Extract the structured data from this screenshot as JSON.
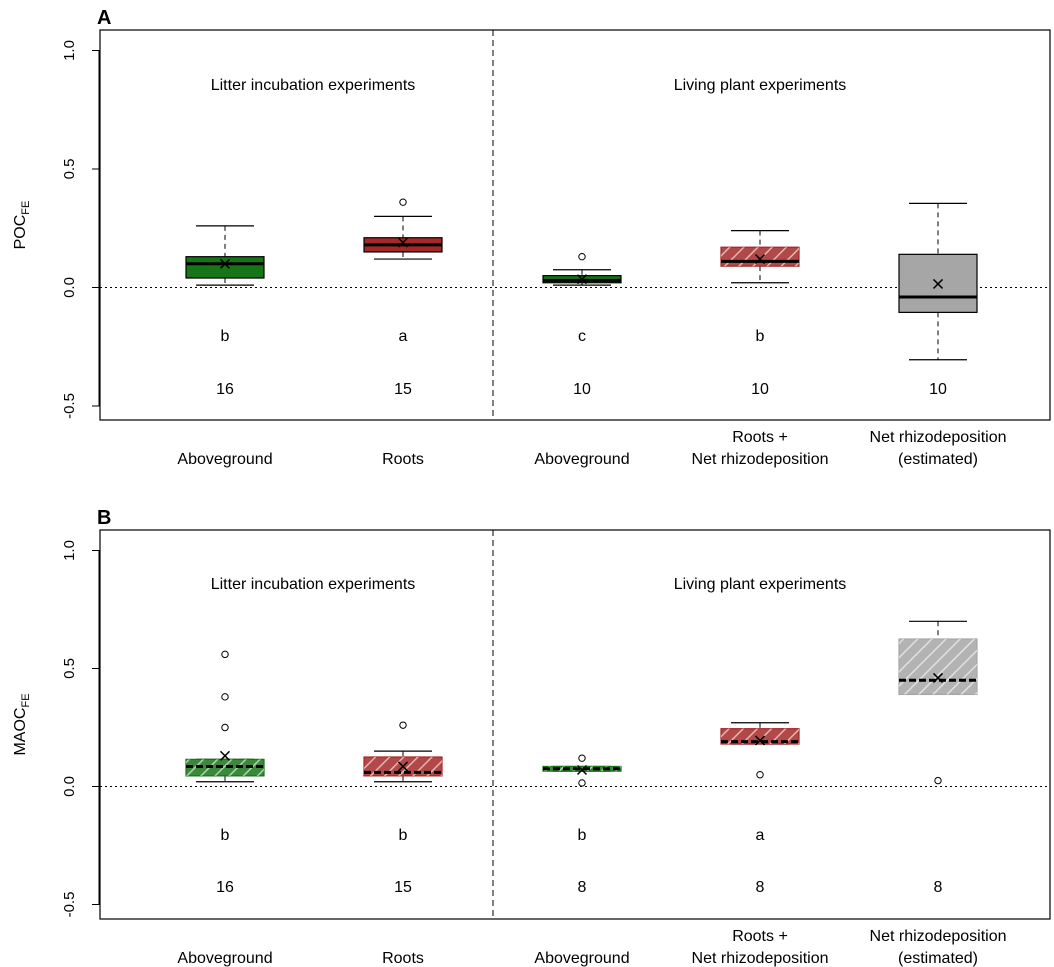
{
  "chart_data": [
    {
      "type": "boxplot",
      "panel_label": "A",
      "ylabel": "POC",
      "ylabel_subscript": "FE",
      "ylim": [
        -0.5,
        1.0
      ],
      "yticks": [
        "-0.5",
        "0.0",
        "0.5",
        "1.0"
      ],
      "reference_line_y": 0,
      "sections": [
        "Litter incubation experiments",
        "Living plant experiments"
      ],
      "categories": [
        {
          "lines": [
            "Aboveground"
          ]
        },
        {
          "lines": [
            "Roots"
          ]
        },
        {
          "lines": [
            "Aboveground"
          ]
        },
        {
          "lines": [
            "Roots +",
            "Net rhizodeposition"
          ]
        },
        {
          "lines": [
            "Net rhizodeposition",
            "(estimated)"
          ]
        }
      ],
      "boxes": [
        {
          "section": 0,
          "letter": "b",
          "n": "16",
          "whisker_low": 0.01,
          "q1": 0.04,
          "median": 0.1,
          "q3": 0.13,
          "whisker_high": 0.26,
          "mean": 0.1,
          "outliers": [],
          "fill": "#167516",
          "hatched": false,
          "median_dashed": false
        },
        {
          "section": 0,
          "letter": "a",
          "n": "15",
          "whisker_low": 0.12,
          "q1": 0.15,
          "median": 0.18,
          "q3": 0.21,
          "whisker_high": 0.3,
          "mean": 0.19,
          "outliers": [
            0.36
          ],
          "fill": "#a52828",
          "hatched": false,
          "median_dashed": false
        },
        {
          "section": 1,
          "letter": "c",
          "n": "10",
          "whisker_low": 0.01,
          "q1": 0.02,
          "median": 0.03,
          "q3": 0.05,
          "whisker_high": 0.075,
          "mean": 0.035,
          "outliers": [
            0.13
          ],
          "fill": "#167516",
          "hatched": false,
          "median_dashed": false
        },
        {
          "section": 1,
          "letter": "b",
          "n": "10",
          "whisker_low": 0.02,
          "q1": 0.09,
          "median": 0.11,
          "q3": 0.17,
          "whisker_high": 0.24,
          "mean": 0.12,
          "outliers": [],
          "fill": "#a52828",
          "hatched": true,
          "median_dashed": false
        },
        {
          "section": 1,
          "letter": "",
          "n": "10",
          "whisker_low": -0.305,
          "q1": -0.105,
          "median": -0.04,
          "q3": 0.14,
          "whisker_high": 0.355,
          "mean": 0.015,
          "outliers": [],
          "fill": "#a6a6a6",
          "hatched": false,
          "median_dashed": false
        }
      ]
    },
    {
      "type": "boxplot",
      "panel_label": "B",
      "ylabel": "MAOC",
      "ylabel_subscript": "FE",
      "ylim": [
        -0.5,
        1.0
      ],
      "yticks": [
        "-0.5",
        "0.0",
        "0.5",
        "1.0"
      ],
      "reference_line_y": 0,
      "sections": [
        "Litter incubation experiments",
        "Living plant experiments"
      ],
      "categories": [
        {
          "lines": [
            "Aboveground"
          ]
        },
        {
          "lines": [
            "Roots"
          ]
        },
        {
          "lines": [
            "Aboveground"
          ]
        },
        {
          "lines": [
            "Roots +",
            "Net rhizodeposition"
          ]
        },
        {
          "lines": [
            "Net rhizodeposition",
            "(estimated)"
          ]
        }
      ],
      "boxes": [
        {
          "section": 0,
          "letter": "b",
          "n": "16",
          "whisker_low": 0.02,
          "q1": 0.045,
          "median": 0.085,
          "q3": 0.115,
          "whisker_high": 0.115,
          "mean": 0.13,
          "outliers": [
            0.25,
            0.38,
            0.56
          ],
          "fill": "#167516",
          "hatched": true,
          "median_dashed": true
        },
        {
          "section": 0,
          "letter": "b",
          "n": "15",
          "whisker_low": 0.02,
          "q1": 0.045,
          "median": 0.06,
          "q3": 0.125,
          "whisker_high": 0.15,
          "mean": 0.085,
          "outliers": [
            0.26
          ],
          "fill": "#a52828",
          "hatched": true,
          "median_dashed": true
        },
        {
          "section": 1,
          "letter": "b",
          "n": "8",
          "whisker_low": 0.065,
          "q1": 0.065,
          "median": 0.075,
          "q3": 0.085,
          "whisker_high": 0.085,
          "mean": 0.07,
          "outliers": [
            0.12,
            0.015
          ],
          "fill": "#167516",
          "hatched": true,
          "median_dashed": true
        },
        {
          "section": 1,
          "letter": "a",
          "n": "8",
          "whisker_low": 0.18,
          "q1": 0.18,
          "median": 0.19,
          "q3": 0.245,
          "whisker_high": 0.27,
          "mean": 0.195,
          "outliers": [
            0.05
          ],
          "fill": "#a52828",
          "hatched": true,
          "median_dashed": true
        },
        {
          "section": 1,
          "letter": "",
          "n": "8",
          "whisker_low": 0.39,
          "q1": 0.39,
          "median": 0.45,
          "q3": 0.625,
          "whisker_high": 0.7,
          "mean": 0.46,
          "outliers": [
            0.025
          ],
          "fill": "#a6a6a6",
          "hatched": true,
          "median_dashed": true
        }
      ]
    }
  ]
}
